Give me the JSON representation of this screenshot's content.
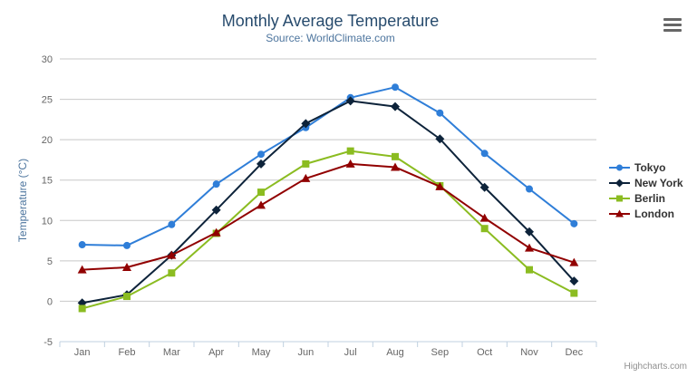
{
  "chart": {
    "title": "Monthly Average Temperature",
    "subtitle": "Source: WorldClimate.com",
    "y_axis_title": "Temperature (°C)",
    "credits": "Highcharts.com"
  },
  "chart_data": {
    "type": "line",
    "title": "Monthly Average Temperature",
    "subtitle": "Source: WorldClimate.com",
    "xlabel": "",
    "ylabel": "Temperature (°C)",
    "ylim": [
      -5,
      30
    ],
    "y_ticks": [
      -5,
      0,
      5,
      10,
      15,
      20,
      25,
      30
    ],
    "grid": true,
    "legend_position": "right",
    "categories": [
      "Jan",
      "Feb",
      "Mar",
      "Apr",
      "May",
      "Jun",
      "Jul",
      "Aug",
      "Sep",
      "Oct",
      "Nov",
      "Dec"
    ],
    "series": [
      {
        "name": "Tokyo",
        "color": "#2f7ed8",
        "marker": "circle",
        "values": [
          7.0,
          6.9,
          9.5,
          14.5,
          18.2,
          21.5,
          25.2,
          26.5,
          23.3,
          18.3,
          13.9,
          9.6
        ]
      },
      {
        "name": "New York",
        "color": "#0d233a",
        "marker": "diamond",
        "values": [
          -0.2,
          0.8,
          5.7,
          11.3,
          17.0,
          22.0,
          24.8,
          24.1,
          20.1,
          14.1,
          8.6,
          2.5
        ]
      },
      {
        "name": "Berlin",
        "color": "#8bbc21",
        "marker": "square",
        "values": [
          -0.9,
          0.6,
          3.5,
          8.4,
          13.5,
          17.0,
          18.6,
          17.9,
          14.3,
          9.0,
          3.9,
          1.0
        ]
      },
      {
        "name": "London",
        "color": "#910000",
        "marker": "triangle",
        "values": [
          3.9,
          4.2,
          5.7,
          8.5,
          11.9,
          15.2,
          17.0,
          16.6,
          14.2,
          10.3,
          6.6,
          4.8
        ]
      }
    ]
  },
  "icons": {
    "export_menu": "hamburger-icon"
  },
  "colors": {
    "title": "#274b6d",
    "subtitle": "#4d759e",
    "y_axis_title": "#4d759e",
    "legend_text": "#333333",
    "tick_label": "#666666",
    "grid": "#c8c8c8",
    "axis_line": "#c0d0e0",
    "credits": "#909090",
    "export_icon": "#666666",
    "background": "#ffffff"
  }
}
